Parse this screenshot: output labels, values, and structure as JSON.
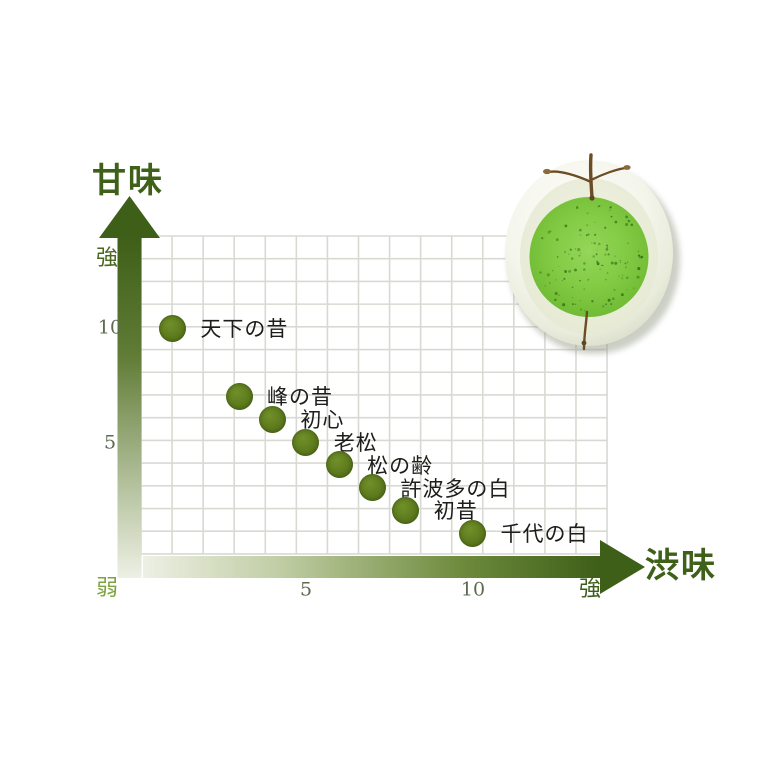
{
  "page": {
    "background": "#ffffff"
  },
  "chart_data": {
    "type": "scatter",
    "title": "",
    "x_axis": {
      "label": "渋味",
      "weak_label": "弱",
      "strong_label": "強",
      "ticks": [
        5,
        10
      ],
      "range_shown": [
        0,
        14
      ]
    },
    "y_axis": {
      "label": "甘味",
      "strong_label": "強",
      "ticks": [
        10,
        5
      ],
      "range_shown": [
        0,
        14
      ]
    },
    "grid": true,
    "legend": false,
    "points": [
      {
        "name": "天下の昔",
        "x": 1,
        "y": 10
      },
      {
        "name": "峰の昔",
        "x": 3,
        "y": 7
      },
      {
        "name": "初心",
        "x": 4,
        "y": 6
      },
      {
        "name": "老松",
        "x": 5,
        "y": 5
      },
      {
        "name": "松の齢",
        "x": 6,
        "y": 4
      },
      {
        "name": "許波多の白",
        "x": 7,
        "y": 3
      },
      {
        "name": "初昔",
        "x": 8,
        "y": 2
      },
      {
        "name": "千代の白",
        "x": 10,
        "y": 1
      }
    ]
  },
  "axis": {
    "y_title": "甘味",
    "x_title": "渋味",
    "y_strong": "強",
    "x_strong": "強",
    "weak": "弱",
    "y_ticks": [
      "10",
      "5"
    ],
    "x_ticks": [
      "5",
      "10"
    ]
  },
  "illustration": {
    "name": "matcha-bowl-photo"
  },
  "colors": {
    "title_green": "#3e6019",
    "strong_label_green": "#49671f",
    "weak_label_green": "#7da43e",
    "tick_color": "#5d6b50",
    "arrow_dark_green": "#3e5f18",
    "dot_olive_green": "#5d7a1d",
    "grid_line": "#d9d9d3",
    "matcha_green": "#7cc43c",
    "branch_brown": "#6b4c25",
    "point_label_color": "#1d1d1b"
  }
}
